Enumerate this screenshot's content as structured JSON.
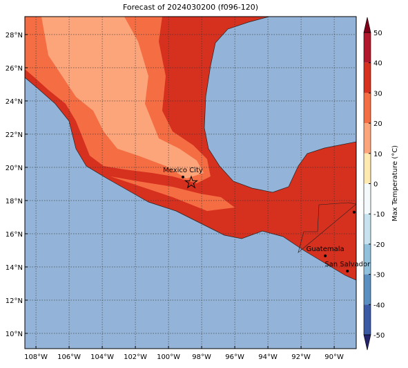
{
  "map": {
    "title": "Forecast of 2024030200 (f096-120)",
    "xlim": [
      -108.67,
      -88.67
    ],
    "ylim": [
      9.08,
      29.08
    ],
    "xticks": [
      {
        "value": -108,
        "label": "108°W"
      },
      {
        "value": -106,
        "label": "106°W"
      },
      {
        "value": -104,
        "label": "104°W"
      },
      {
        "value": -102,
        "label": "102°W"
      },
      {
        "value": -100,
        "label": "100°W"
      },
      {
        "value": -98,
        "label": "98°W"
      },
      {
        "value": -96,
        "label": "96°W"
      },
      {
        "value": -94,
        "label": "94°W"
      },
      {
        "value": -92,
        "label": "92°W"
      },
      {
        "value": -90,
        "label": "90°W"
      }
    ],
    "yticks": [
      {
        "value": 10,
        "label": "10°N"
      },
      {
        "value": 12,
        "label": "12°N"
      },
      {
        "value": 14,
        "label": "14°N"
      },
      {
        "value": 16,
        "label": "16°N"
      },
      {
        "value": 18,
        "label": "18°N"
      },
      {
        "value": 20,
        "label": "20°N"
      },
      {
        "value": 22,
        "label": "22°N"
      },
      {
        "value": 24,
        "label": "24°N"
      },
      {
        "value": 26,
        "label": "26°N"
      },
      {
        "value": 28,
        "label": "28°N"
      }
    ],
    "grid": true,
    "cities": [
      {
        "name": "Mexico City",
        "lon": -99.13,
        "lat": 19.42
      },
      {
        "name": "Guatemala",
        "lon": -90.54,
        "lat": 14.67
      },
      {
        "name": "San Salvador",
        "lon": -89.2,
        "lat": 13.75
      }
    ],
    "points": [
      {
        "lon": -88.8,
        "lat": 17.3
      }
    ],
    "star": {
      "lon": -98.63,
      "lat": 19.08
    },
    "colorbar": {
      "label": "Max Temperature (°C)",
      "ticks": [
        50,
        40,
        30,
        20,
        10,
        0,
        -10,
        -20,
        -30,
        -40,
        -50
      ],
      "colors": [
        "#b2182b",
        "#d6301f",
        "#f46d43",
        "#fca57a",
        "#fee9b0",
        "#f4fafb",
        "#c6e2ee",
        "#8fc0dc",
        "#5a8fc2",
        "#3a5aa6"
      ],
      "extend_colors": [
        "#80001a",
        "#23236e"
      ]
    }
  }
}
